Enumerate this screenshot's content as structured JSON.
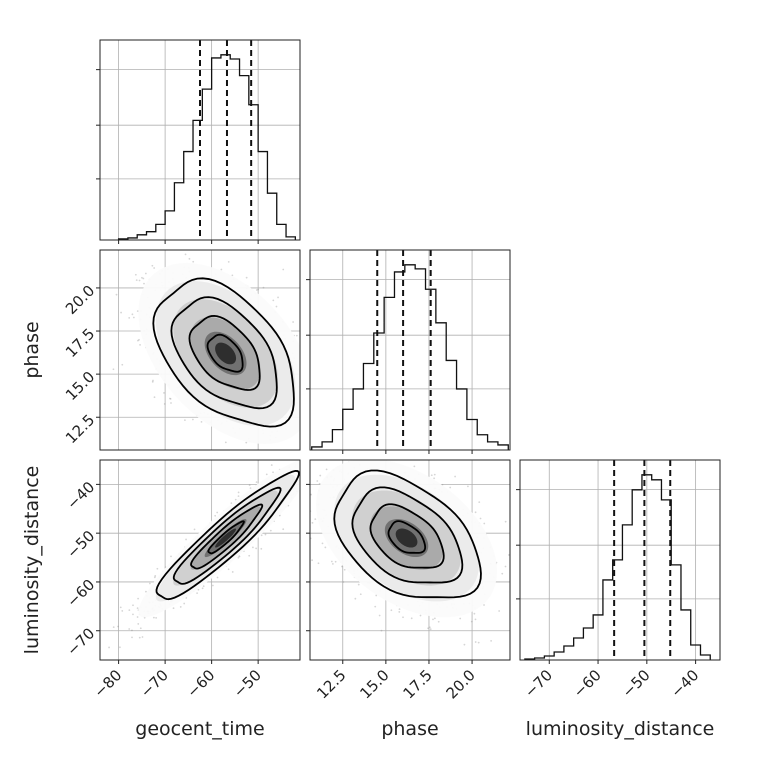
{
  "chart_data": {
    "type": "corner",
    "grid": true,
    "parameters": [
      {
        "name": "geocent_time",
        "range": [
          -84,
          -41
        ],
        "ticks": [
          -80,
          -70,
          -60,
          -50
        ],
        "tick_labels": [
          "−80",
          "−70",
          "−60",
          "−50"
        ]
      },
      {
        "name": "phase",
        "range": [
          10.6,
          22.2
        ],
        "ticks": [
          12.5,
          15.0,
          17.5,
          20.0
        ],
        "tick_labels": [
          "12.5",
          "15.0",
          "17.5",
          "20.0"
        ]
      },
      {
        "name": "luminosity_distance",
        "range": [
          -76,
          -35
        ],
        "ticks": [
          -70,
          -60,
          -50,
          -40
        ],
        "tick_labels": [
          "−70",
          "−60",
          "−50",
          "−40"
        ]
      }
    ],
    "diagonal": [
      {
        "parameter": "geocent_time",
        "bin_edges": [
          -80,
          -78,
          -76,
          -74,
          -72,
          -70,
          -68,
          -66,
          -64,
          -62,
          -60,
          -58,
          -56,
          -54,
          -52,
          -50,
          -48,
          -46,
          -44,
          -42
        ],
        "counts": [
          1,
          2,
          5,
          8,
          15,
          28,
          55,
          85,
          115,
          145,
          175,
          178,
          174,
          158,
          130,
          85,
          45,
          15,
          3
        ],
        "quantiles": [
          -62.5,
          -56.7,
          -51.5
        ]
      },
      {
        "parameter": "phase",
        "bin_edges": [
          10.7,
          11.3,
          11.9,
          12.5,
          13.1,
          13.7,
          14.3,
          14.9,
          15.5,
          16.1,
          16.7,
          17.3,
          17.9,
          18.5,
          19.1,
          19.7,
          20.3,
          20.9,
          21.5,
          22.1
        ],
        "counts": [
          3,
          8,
          20,
          40,
          60,
          85,
          115,
          150,
          175,
          182,
          178,
          158,
          125,
          88,
          60,
          30,
          15,
          8,
          5
        ],
        "quantiles": [
          14.5,
          16.0,
          17.6
        ]
      },
      {
        "parameter": "luminosity_distance",
        "bin_edges": [
          -75,
          -73,
          -71,
          -69,
          -67,
          -65,
          -63,
          -61,
          -59,
          -57,
          -55,
          -53,
          -51,
          -49,
          -47,
          -45,
          -43,
          -41,
          -39,
          -37
        ],
        "counts": [
          1,
          2,
          4,
          8,
          14,
          22,
          32,
          45,
          80,
          100,
          135,
          170,
          185,
          180,
          160,
          95,
          50,
          15,
          5
        ],
        "quantiles": [
          -56.7,
          -50.5,
          -45.2
        ]
      }
    ],
    "pairs": [
      {
        "x": "geocent_time",
        "y": "phase",
        "mean": [
          -57,
          16.2
        ],
        "sd": [
          7.5,
          2.1
        ],
        "corr": -0.45
      },
      {
        "x": "geocent_time",
        "y": "luminosity_distance",
        "mean": [
          -57,
          -51
        ],
        "sd": [
          7.5,
          6.5
        ],
        "corr": 0.93
      },
      {
        "x": "phase",
        "y": "luminosity_distance",
        "mean": [
          16.2,
          -51
        ],
        "sd": [
          2.1,
          6.5
        ],
        "corr": -0.42
      }
    ]
  },
  "colors": {
    "ink": "#111111",
    "scatter": "#8a8a8a",
    "grid": "#b0b0b0"
  }
}
